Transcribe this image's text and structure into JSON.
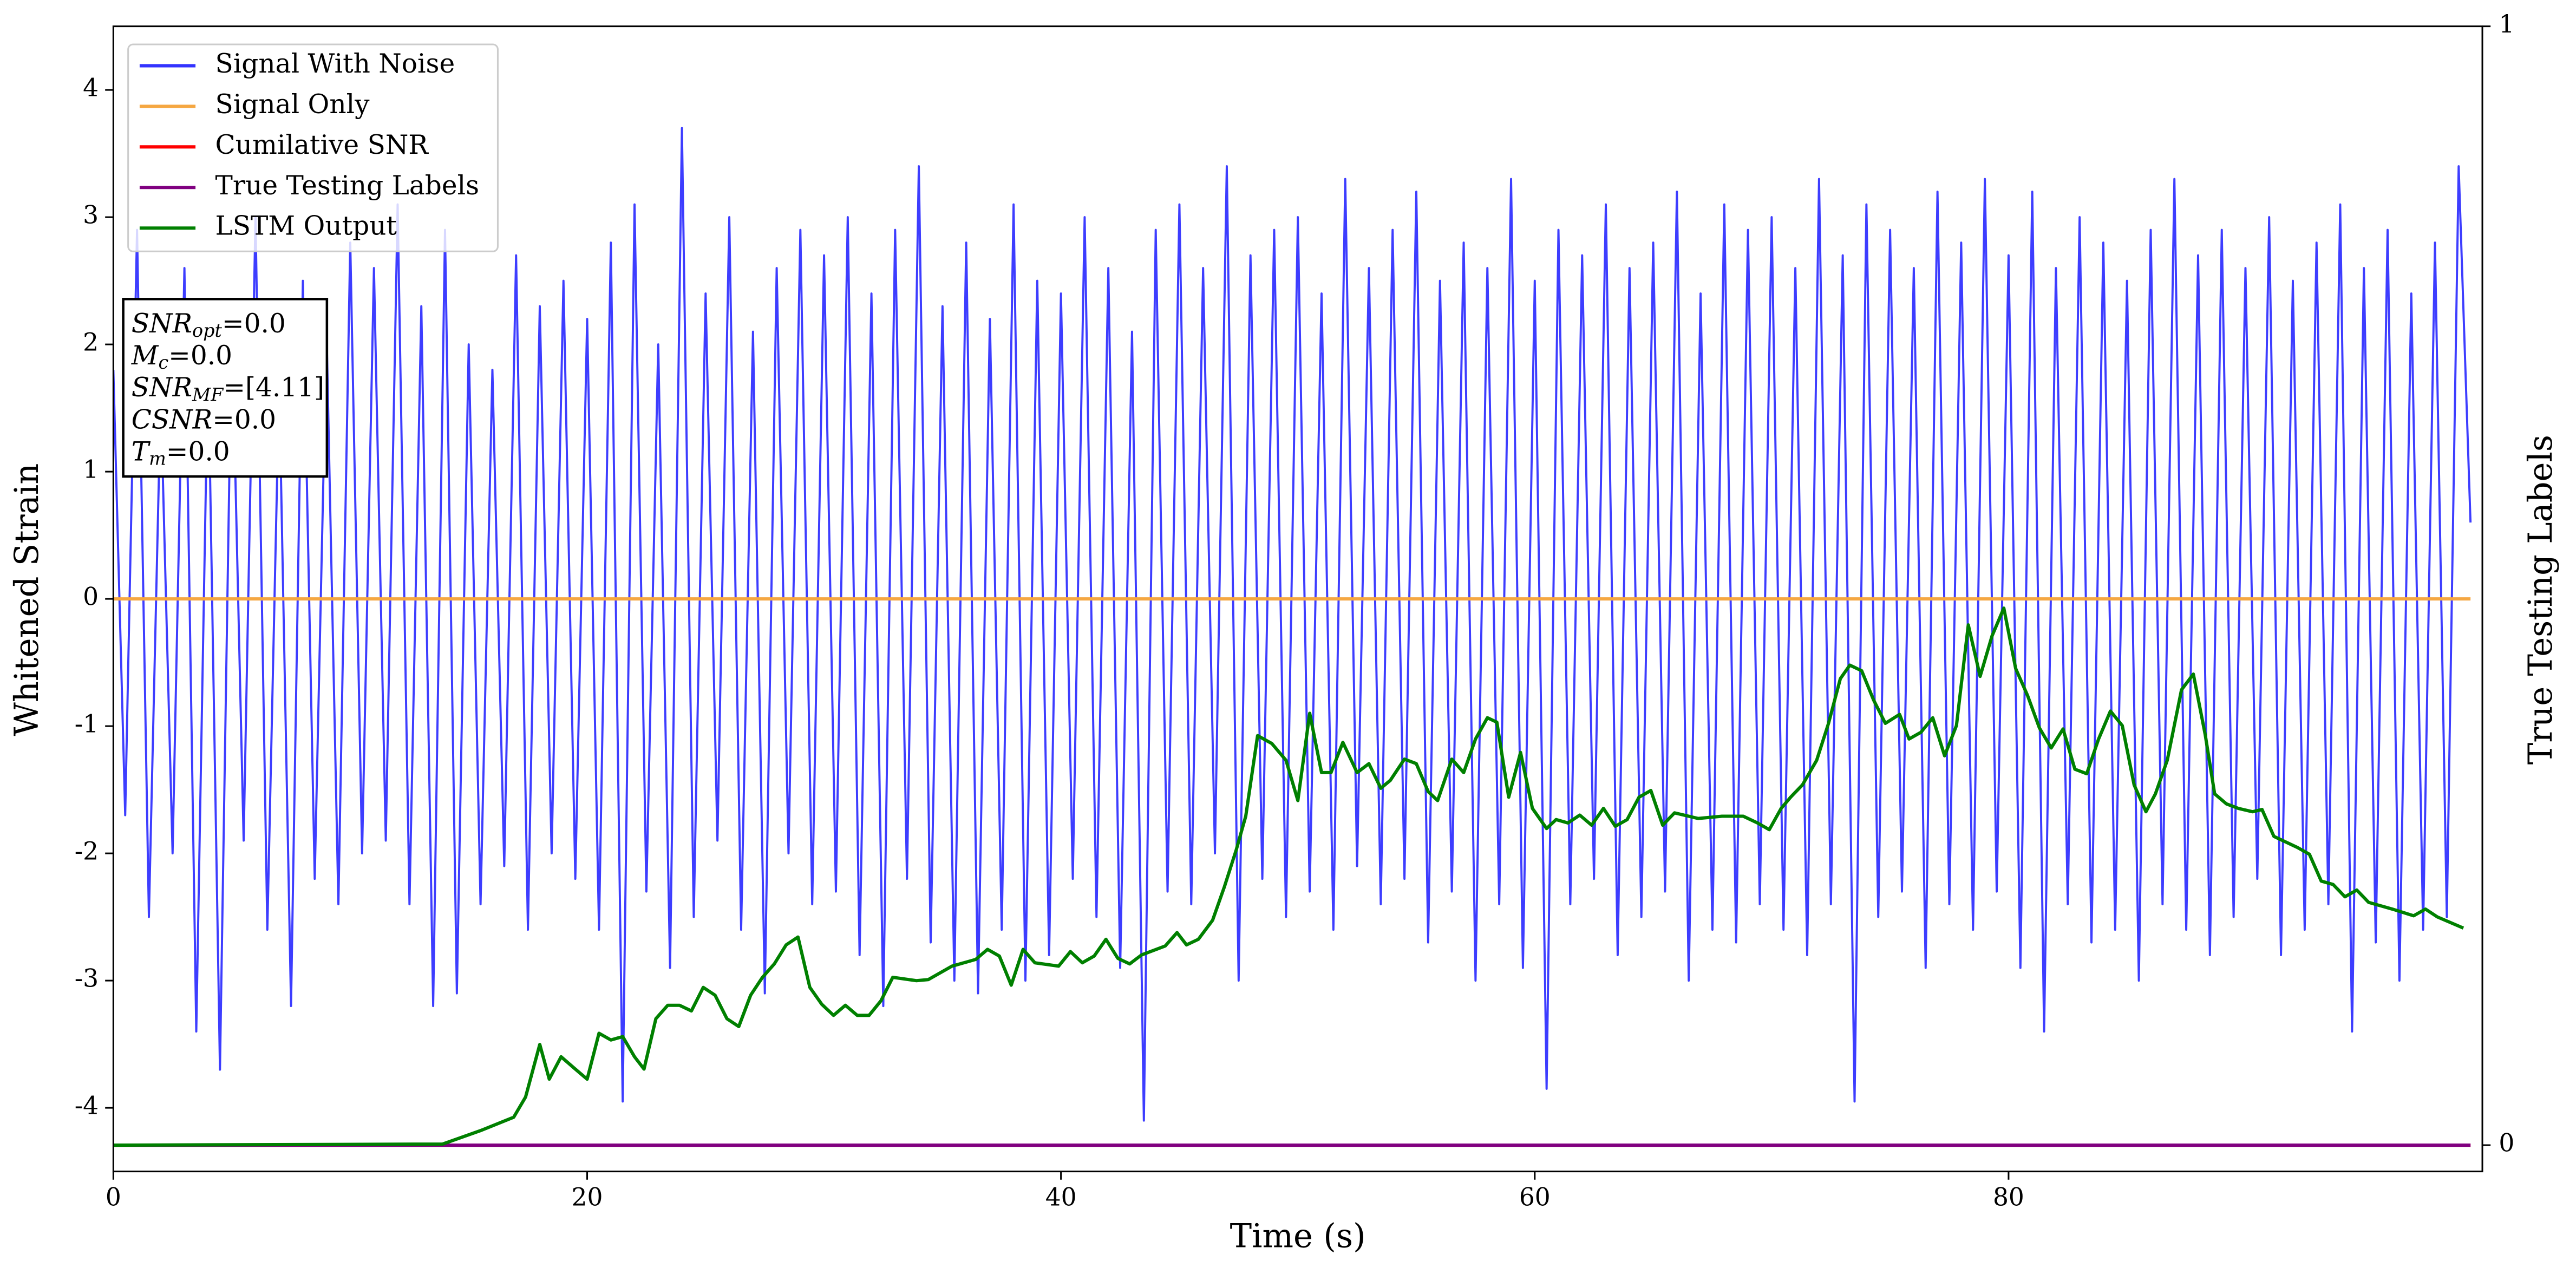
{
  "chart_data": {
    "type": "line",
    "xlabel": "Time (s)",
    "ylabel": "Whitened Strain",
    "y2label": "True Testing Labels",
    "xlim": [
      0,
      100
    ],
    "xticks": [
      0,
      20,
      40,
      60,
      80
    ],
    "ylim": [
      -4.5,
      4.5
    ],
    "yticks": [
      -4,
      -3,
      -2,
      -1,
      0,
      1,
      2,
      3,
      4
    ],
    "y2lim": [
      -0.0235,
      1
    ],
    "y2ticks": [
      0,
      1
    ],
    "grid": false,
    "legend": "upper left",
    "annotation_lines": [
      {
        "symbol": "SNR",
        "sub": "opt",
        "text": "=0.0"
      },
      {
        "symbol": "M",
        "sub": "c",
        "text": "=0.0"
      },
      {
        "symbol": "SNR",
        "sub": "MF",
        "text": "=[4.11]"
      },
      {
        "symbol": "CSNR",
        "sub": null,
        "text": "=0.0"
      },
      {
        "symbol": "T",
        "sub": "m",
        "text": "=0.0"
      }
    ],
    "series": [
      {
        "name": "Signal With Noise",
        "color": "#3333ff",
        "axis": "y",
        "x": [
          0,
          0.5,
          1,
          1.5,
          2,
          2.5,
          3,
          3.5,
          4,
          4.5,
          5,
          5.5,
          6,
          6.5,
          7,
          7.5,
          8,
          8.5,
          9,
          9.5,
          10,
          10.5,
          11,
          11.5,
          12,
          12.5,
          13,
          13.5,
          14,
          14.5,
          15,
          15.5,
          16,
          16.5,
          17,
          17.5,
          18,
          18.5,
          19,
          19.5,
          20,
          20.5,
          21,
          21.5,
          22,
          22.5,
          23,
          23.5,
          24,
          24.5,
          25,
          25.5,
          26,
          26.5,
          27,
          27.5,
          28,
          28.5,
          29,
          29.5,
          30,
          30.5,
          31,
          31.5,
          32,
          32.5,
          33,
          33.5,
          34,
          34.5,
          35,
          35.5,
          36,
          36.5,
          37,
          37.5,
          38,
          38.5,
          39,
          39.5,
          40,
          40.5,
          41,
          41.5,
          42,
          42.5,
          43,
          43.5,
          44,
          44.5,
          45,
          45.5,
          46,
          46.5,
          47,
          47.5,
          48,
          48.5,
          49,
          49.5,
          50,
          50.5,
          51,
          51.5,
          52,
          52.5,
          53,
          53.5,
          54,
          54.5,
          55,
          55.5,
          56,
          56.5,
          57,
          57.5,
          58,
          58.5,
          59,
          59.5,
          60,
          60.5,
          61,
          61.5,
          62,
          62.5,
          63,
          63.5,
          64,
          64.5,
          65,
          65.5,
          66,
          66.5,
          67,
          67.5,
          68,
          68.5,
          69,
          69.5,
          70,
          70.5,
          71,
          71.5,
          72,
          72.5,
          73,
          73.5,
          74,
          74.5,
          75,
          75.5,
          76,
          76.5,
          77,
          77.5,
          78,
          78.5,
          79,
          79.5,
          80,
          80.5,
          81,
          81.5,
          82,
          82.5,
          83,
          83.5,
          84,
          84.5,
          85,
          85.5,
          86,
          86.5,
          87,
          87.5,
          88,
          88.5,
          89,
          89.5,
          90,
          90.5,
          91,
          91.5,
          92,
          92.5,
          93,
          93.5,
          94,
          94.5,
          95,
          95.5,
          96,
          96.5,
          97,
          97.5,
          98,
          98.5,
          99,
          99.5
        ],
        "values": [
          1.8,
          -1.7,
          2.9,
          -2.5,
          1.6,
          -2.0,
          2.6,
          -3.4,
          1.9,
          -3.7,
          2.2,
          -1.9,
          3.0,
          -2.6,
          1.7,
          -3.2,
          2.5,
          -2.2,
          2.1,
          -2.4,
          2.8,
          -2.0,
          2.6,
          -1.9,
          3.1,
          -2.4,
          2.3,
          -3.2,
          2.9,
          -3.1,
          2.0,
          -2.4,
          1.8,
          -2.1,
          2.7,
          -2.6,
          2.3,
          -2.0,
          2.5,
          -2.2,
          2.2,
          -2.6,
          2.8,
          -3.95,
          3.1,
          -2.3,
          2.0,
          -2.9,
          3.7,
          -2.5,
          2.4,
          -1.9,
          3.0,
          -2.6,
          2.1,
          -3.1,
          2.6,
          -2.0,
          2.9,
          -2.4,
          2.7,
          -2.3,
          3.0,
          -2.8,
          2.4,
          -3.2,
          2.9,
          -2.2,
          3.4,
          -2.7,
          2.3,
          -3.0,
          2.8,
          -3.1,
          2.2,
          -2.6,
          3.1,
          -3.0,
          2.5,
          -2.8,
          2.4,
          -2.2,
          3.0,
          -2.5,
          2.6,
          -2.9,
          2.1,
          -4.1,
          2.9,
          -2.3,
          3.1,
          -2.4,
          2.6,
          -2.0,
          3.4,
          -3.0,
          2.7,
          -2.2,
          2.9,
          -2.5,
          3.0,
          -2.3,
          2.4,
          -2.6,
          3.3,
          -2.1,
          2.6,
          -2.4,
          2.9,
          -2.2,
          3.2,
          -2.7,
          2.5,
          -2.3,
          2.8,
          -3.0,
          2.6,
          -2.4,
          3.3,
          -2.9,
          2.5,
          -3.85,
          2.9,
          -2.4,
          2.7,
          -2.2,
          3.1,
          -2.8,
          2.6,
          -2.5,
          2.8,
          -2.3,
          3.2,
          -3.0,
          2.4,
          -2.6,
          3.1,
          -2.7,
          2.9,
          -2.4,
          3.0,
          -2.6,
          2.6,
          -2.8,
          3.3,
          -2.4,
          2.7,
          -3.95,
          3.1,
          -2.5,
          2.9,
          -2.3,
          2.6,
          -2.9,
          3.2,
          -2.4,
          2.8,
          -2.6,
          3.3,
          -2.3,
          2.7,
          -2.9,
          3.2,
          -3.4,
          2.6,
          -2.4,
          3.0,
          -2.7,
          2.8,
          -2.6,
          2.5,
          -3.0,
          2.9,
          -2.4,
          3.3,
          -2.6,
          2.7,
          -2.8,
          2.9,
          -2.5,
          2.6,
          -2.2,
          3.0,
          -2.8,
          2.5,
          -2.6,
          2.8,
          -2.4,
          3.1,
          -3.4,
          2.6,
          -2.7,
          2.9,
          -3.0,
          2.4,
          -2.6,
          2.8,
          -2.5,
          3.4,
          0.6
        ]
      },
      {
        "name": "Signal Only",
        "color": "#f5a742",
        "axis": "y",
        "x": [
          0,
          99.5
        ],
        "values": [
          0,
          0
        ]
      },
      {
        "name": "Cumilative SNR",
        "color": "#ff0000",
        "axis": "y2",
        "x": [
          0,
          99.5
        ],
        "values": [
          0,
          0
        ]
      },
      {
        "name": "True Testing Labels",
        "color": "#800080",
        "axis": "y2",
        "x": [
          0,
          99.5
        ],
        "values": [
          0,
          0
        ]
      },
      {
        "name": "LSTM Output",
        "color": "#008000",
        "axis": "y2",
        "x": [
          0,
          13.9,
          15.5,
          16.9,
          17.4,
          18,
          18.4,
          18.9,
          19.5,
          20,
          20.5,
          21,
          21.5,
          22,
          22.4,
          22.9,
          23.4,
          23.9,
          24.4,
          24.9,
          25.4,
          25.9,
          26.4,
          26.9,
          27.4,
          27.9,
          28.4,
          28.9,
          29.4,
          29.9,
          30.4,
          30.9,
          31.4,
          31.9,
          32.4,
          32.9,
          33.9,
          34.4,
          35.4,
          36.4,
          36.9,
          37.4,
          37.9,
          38.4,
          38.9,
          39.9,
          40.4,
          40.9,
          41.4,
          41.9,
          42.4,
          42.9,
          43.4,
          44.4,
          44.9,
          45.3,
          45.8,
          46.4,
          46.9,
          47.4,
          47.8,
          48.3,
          48.9,
          49.5,
          50,
          50.5,
          51,
          51.4,
          51.9,
          52.5,
          53,
          53.5,
          53.9,
          54.5,
          55,
          55.5,
          55.9,
          56.5,
          57,
          57.5,
          58,
          58.4,
          58.9,
          59.4,
          59.9,
          60.5,
          60.9,
          61.4,
          61.9,
          62.4,
          62.9,
          63.4,
          63.9,
          64.4,
          64.9,
          65.4,
          65.9,
          66.9,
          67.9,
          68.8,
          69.4,
          69.9,
          70.4,
          70.8,
          71.3,
          71.9,
          72.4,
          72.9,
          73.3,
          73.8,
          74.3,
          74.8,
          75.4,
          75.8,
          76.3,
          76.8,
          77.3,
          77.8,
          78.3,
          78.8,
          79.3,
          79.8,
          80.3,
          80.8,
          81.3,
          81.8,
          82.3,
          82.8,
          83.3,
          83.8,
          84.3,
          84.8,
          85.3,
          85.8,
          86.2,
          86.7,
          87.3,
          87.8,
          88.3,
          88.7,
          89.2,
          89.7,
          90.3,
          90.7,
          91.2,
          92.2,
          92.7,
          93.2,
          93.7,
          94.2,
          94.7,
          95.2,
          96.2,
          97.1,
          97.6,
          98.1,
          99.2
        ],
        "values": [
          0,
          0.001,
          0.013,
          0.025,
          0.043,
          0.09,
          0.059,
          0.079,
          0.068,
          0.059,
          0.1,
          0.094,
          0.097,
          0.079,
          0.068,
          0.113,
          0.125,
          0.125,
          0.12,
          0.141,
          0.134,
          0.113,
          0.106,
          0.134,
          0.15,
          0.162,
          0.179,
          0.186,
          0.141,
          0.126,
          0.116,
          0.125,
          0.116,
          0.116,
          0.129,
          0.15,
          0.147,
          0.148,
          0.16,
          0.166,
          0.175,
          0.169,
          0.143,
          0.175,
          0.163,
          0.16,
          0.173,
          0.163,
          0.169,
          0.184,
          0.167,
          0.162,
          0.17,
          0.178,
          0.19,
          0.179,
          0.184,
          0.201,
          0.231,
          0.264,
          0.294,
          0.366,
          0.359,
          0.344,
          0.308,
          0.386,
          0.333,
          0.333,
          0.36,
          0.333,
          0.341,
          0.319,
          0.326,
          0.345,
          0.341,
          0.316,
          0.308,
          0.345,
          0.333,
          0.363,
          0.382,
          0.378,
          0.311,
          0.351,
          0.301,
          0.283,
          0.291,
          0.288,
          0.295,
          0.286,
          0.301,
          0.285,
          0.291,
          0.311,
          0.317,
          0.286,
          0.297,
          0.292,
          0.294,
          0.294,
          0.288,
          0.282,
          0.301,
          0.311,
          0.322,
          0.344,
          0.377,
          0.417,
          0.429,
          0.424,
          0.398,
          0.377,
          0.385,
          0.363,
          0.369,
          0.382,
          0.348,
          0.375,
          0.465,
          0.419,
          0.455,
          0.48,
          0.426,
          0.402,
          0.373,
          0.355,
          0.372,
          0.336,
          0.332,
          0.363,
          0.388,
          0.375,
          0.322,
          0.298,
          0.314,
          0.344,
          0.407,
          0.421,
          0.367,
          0.314,
          0.305,
          0.301,
          0.298,
          0.3,
          0.276,
          0.266,
          0.26,
          0.236,
          0.233,
          0.222,
          0.228,
          0.217,
          0.211,
          0.205,
          0.211,
          0.204,
          0.194
        ]
      }
    ]
  }
}
